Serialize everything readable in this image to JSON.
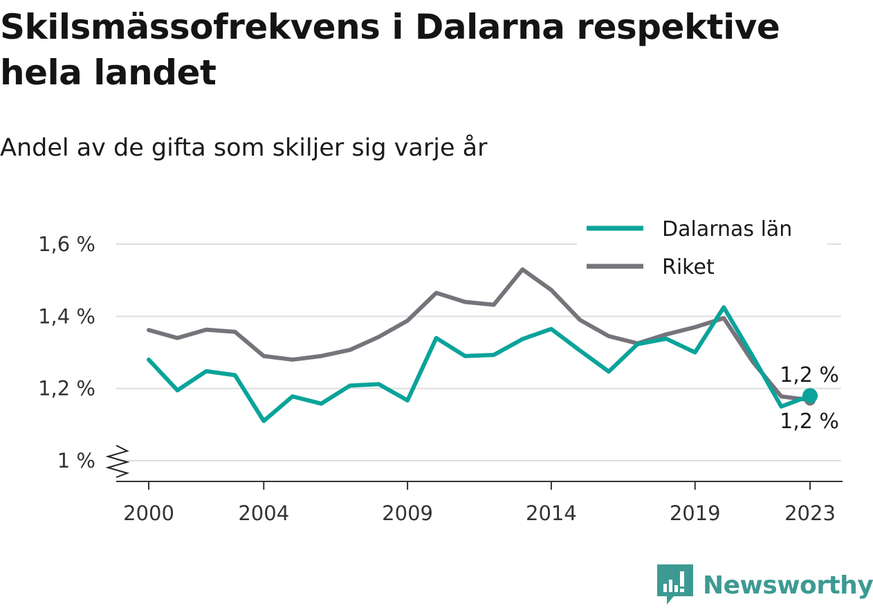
{
  "title": "Skilsmässofrekvens i Dalarna respektive hela landet",
  "subtitle": "Andel av de gifta som skiljer sig varje år",
  "brand": {
    "name": "Newsworthy",
    "icon": "newsworthy-logo-icon",
    "color": "#3d9a93"
  },
  "chart_data": {
    "type": "line",
    "title": "Skilsmässofrekvens i Dalarna respektive hela landet",
    "subtitle": "Andel av de gifta som skiljer sig varje år",
    "xlabel": "",
    "ylabel": "",
    "x": [
      2000,
      2001,
      2002,
      2003,
      2004,
      2005,
      2006,
      2007,
      2008,
      2009,
      2010,
      2011,
      2012,
      2013,
      2014,
      2015,
      2016,
      2017,
      2018,
      2019,
      2020,
      2021,
      2022,
      2023
    ],
    "x_ticks": [
      {
        "value": 2000,
        "label": "2000"
      },
      {
        "value": 2004,
        "label": "2004"
      },
      {
        "value": 2009,
        "label": "2009"
      },
      {
        "value": 2014,
        "label": "2014"
      },
      {
        "value": 2019,
        "label": "2019"
      },
      {
        "value": 2023,
        "label": "2023"
      }
    ],
    "y_ticks": [
      {
        "value": 1.0,
        "label": "1 %"
      },
      {
        "value": 1.2,
        "label": "1,2 %"
      },
      {
        "value": 1.4,
        "label": "1,4 %"
      },
      {
        "value": 1.6,
        "label": "1,6 %"
      }
    ],
    "xlim": [
      1998.8,
      2024.2
    ],
    "ylim": [
      0.94,
      1.62
    ],
    "grid": true,
    "y_axis_break": true,
    "legend_position": "top-right",
    "series": [
      {
        "name": "Dalarnas län",
        "color": "#0aa39a",
        "values": [
          1.28,
          1.195,
          1.248,
          1.237,
          1.11,
          1.178,
          1.158,
          1.208,
          1.212,
          1.167,
          1.34,
          1.29,
          1.293,
          1.337,
          1.365,
          1.305,
          1.247,
          1.323,
          1.338,
          1.3,
          1.425,
          1.29,
          1.15,
          1.18
        ],
        "end_label": "1,2 %"
      },
      {
        "name": "Riket",
        "color": "#76737a",
        "values": [
          1.362,
          1.34,
          1.363,
          1.357,
          1.29,
          1.28,
          1.29,
          1.307,
          1.343,
          1.388,
          1.465,
          1.44,
          1.432,
          1.53,
          1.473,
          1.39,
          1.345,
          1.325,
          1.35,
          1.37,
          1.395,
          1.275,
          1.178,
          1.168
        ],
        "end_label": "1,2 %"
      }
    ]
  }
}
